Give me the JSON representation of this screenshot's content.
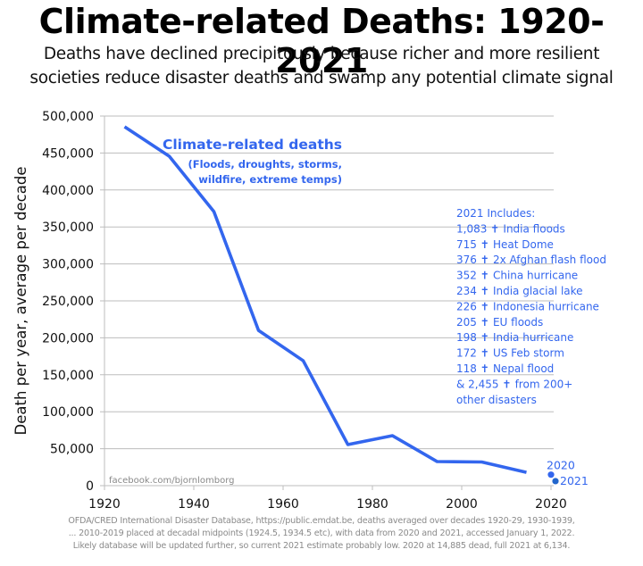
{
  "header": {
    "title": "Climate-related Deaths: 1920-2021",
    "subtitle_line1": "Deaths have declined precipitously because richer and more resilient",
    "subtitle_line2": "societies reduce disaster deaths and swamp any potential climate signal"
  },
  "chart_data": {
    "type": "line",
    "title": "Climate-related Deaths: 1920-2021",
    "xlabel": "",
    "ylabel": "Death per year, average per decade",
    "xlim": [
      1920,
      2025
    ],
    "ylim": [
      0,
      500000
    ],
    "grid": true,
    "x_ticks": [
      1920,
      1940,
      1960,
      1980,
      2000,
      2020
    ],
    "x_tick_labels": [
      "1920",
      "1940",
      "1960",
      "1980",
      "2000",
      "2020"
    ],
    "y_ticks": [
      0,
      50000,
      100000,
      150000,
      200000,
      250000,
      300000,
      350000,
      400000,
      450000,
      500000
    ],
    "y_tick_labels": [
      "0",
      "50,000",
      "100,000",
      "150,000",
      "200,000",
      "250,000",
      "300,000",
      "350,000",
      "400,000",
      "450,000",
      "500,000"
    ],
    "series": [
      {
        "name": "Climate-related deaths",
        "color": "#3366ee",
        "x": [
          1924.5,
          1934.5,
          1944.5,
          1954.5,
          1964.5,
          1974.5,
          1984.5,
          1994.5,
          2004.5,
          2014.5
        ],
        "values": [
          485500,
          445700,
          370800,
          210000,
          169000,
          55600,
          67600,
          32600,
          32000,
          18000
        ]
      },
      {
        "name": "2020",
        "type": "point",
        "color": "#3366ee",
        "x": [
          2020
        ],
        "values": [
          14885
        ],
        "label": "2020"
      },
      {
        "name": "2021",
        "type": "point",
        "color": "#2266cc",
        "x": [
          2021
        ],
        "values": [
          6134
        ],
        "label": "2021"
      }
    ],
    "annotations": {
      "series_label": "Climate-related deaths",
      "series_sublabel_line1": "(Floods, droughts, storms,",
      "series_sublabel_line2": "wildfire, extreme temps)",
      "watermark": "facebook.com/bjornlomborg",
      "includes_header": "2021 Includes:",
      "includes": [
        {
          "count": "1,083",
          "event": "India floods"
        },
        {
          "count": "715",
          "event": "Heat Dome"
        },
        {
          "count": "376",
          "event": "2x Afghan flash flood"
        },
        {
          "count": "352",
          "event": "China hurricane"
        },
        {
          "count": "234",
          "event": "India glacial lake"
        },
        {
          "count": "226",
          "event": "Indonesia hurricane"
        },
        {
          "count": "205",
          "event": "EU floods"
        },
        {
          "count": "198",
          "event": "India hurricane"
        },
        {
          "count": "172",
          "event": "US Feb storm"
        },
        {
          "count": "118",
          "event": "Nepal flood"
        }
      ],
      "includes_other_line1": "& 2,455",
      "includes_other_line1_tail": "from 200+",
      "includes_other_line2": "other disasters",
      "dagger_glyph": "✝"
    }
  },
  "footnote": {
    "line1": "OFDA/CRED International Disaster Database, https://public.emdat.be, deaths averaged over decades 1920-29, 1930-1939,",
    "line2": "... 2010-2019 placed at decadal midpoints (1924.5, 1934.5 etc), with data from 2020 and 2021, accessed January 1, 2022.",
    "line3": "Likely database will be updated further, so current 2021 estimate probably low. 2020 at 14,885 dead, full 2021 at 6,134."
  }
}
